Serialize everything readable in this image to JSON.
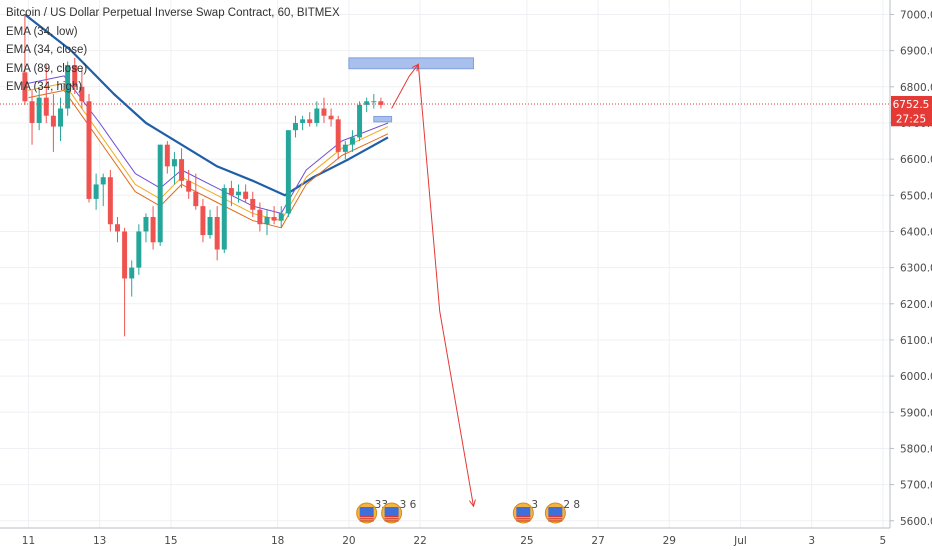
{
  "chart_data": {
    "type": "candlestick",
    "title": "Bitcoin / US Dollar Perpetual Inverse Swap Contract, 60, BITMEX",
    "indicators": [
      "EMA (34, low)",
      "EMA (34, close)",
      "EMA (89, close)",
      "EMA (34, high)"
    ],
    "y_ticks": [
      "7000.0",
      "6900.0",
      "6800.0",
      "6700.0",
      "6600.0",
      "6500.0",
      "6400.0",
      "6300.0",
      "6200.0",
      "6100.0",
      "6000.0",
      "5900.0",
      "5800.0",
      "5700.0",
      "5600.0"
    ],
    "y_tick_values": [
      7000,
      6900,
      6800,
      6700,
      6600,
      6500,
      6400,
      6300,
      6200,
      6100,
      6000,
      5900,
      5800,
      5700,
      5600
    ],
    "x_ticks": [
      "11",
      "13",
      "15",
      "18",
      "20",
      "22",
      "25",
      "27",
      "29",
      "Jul",
      "3",
      "5"
    ],
    "x_tick_days": [
      11,
      13,
      15,
      18,
      20,
      22,
      25,
      27,
      29,
      31,
      33,
      35
    ],
    "ylim": [
      5580,
      7040
    ],
    "xlim": [
      10.2,
      35.2
    ],
    "current_price": "6752.5",
    "current_price_value": 6752.5,
    "countdown": "27:25",
    "countdown_value": 6713,
    "candles": [
      [
        10.9,
        6840,
        7000,
        6750,
        6760
      ],
      [
        11.1,
        6760,
        6790,
        6640,
        6700
      ],
      [
        11.3,
        6700,
        6800,
        6680,
        6770
      ],
      [
        11.5,
        6770,
        6860,
        6700,
        6720
      ],
      [
        11.7,
        6720,
        6780,
        6620,
        6690
      ],
      [
        11.9,
        6690,
        6770,
        6650,
        6740
      ],
      [
        12.1,
        6740,
        6870,
        6720,
        6860
      ],
      [
        12.3,
        6860,
        6880,
        6780,
        6800
      ],
      [
        12.5,
        6800,
        6850,
        6740,
        6760
      ],
      [
        12.7,
        6760,
        6780,
        6480,
        6490
      ],
      [
        12.9,
        6490,
        6560,
        6460,
        6530
      ],
      [
        13.1,
        6530,
        6560,
        6470,
        6550
      ],
      [
        13.3,
        6550,
        6570,
        6400,
        6420
      ],
      [
        13.5,
        6420,
        6440,
        6370,
        6400
      ],
      [
        13.7,
        6400,
        6410,
        6110,
        6270
      ],
      [
        13.9,
        6270,
        6320,
        6220,
        6300
      ],
      [
        14.1,
        6300,
        6420,
        6280,
        6400
      ],
      [
        14.3,
        6400,
        6450,
        6370,
        6440
      ],
      [
        14.5,
        6440,
        6470,
        6350,
        6370
      ],
      [
        14.7,
        6370,
        6640,
        6360,
        6640
      ],
      [
        14.9,
        6640,
        6650,
        6560,
        6580
      ],
      [
        15.1,
        6580,
        6620,
        6530,
        6600
      ],
      [
        15.3,
        6600,
        6630,
        6520,
        6540
      ],
      [
        15.5,
        6540,
        6570,
        6490,
        6510
      ],
      [
        15.7,
        6510,
        6560,
        6460,
        6470
      ],
      [
        15.9,
        6470,
        6490,
        6370,
        6390
      ],
      [
        16.1,
        6390,
        6460,
        6380,
        6440
      ],
      [
        16.3,
        6440,
        6470,
        6320,
        6350
      ],
      [
        16.5,
        6350,
        6530,
        6340,
        6520
      ],
      [
        16.7,
        6520,
        6540,
        6470,
        6500
      ],
      [
        16.9,
        6500,
        6530,
        6480,
        6510
      ],
      [
        17.1,
        6510,
        6530,
        6480,
        6490
      ],
      [
        17.3,
        6490,
        6510,
        6440,
        6460
      ],
      [
        17.5,
        6460,
        6480,
        6400,
        6420
      ],
      [
        17.7,
        6420,
        6460,
        6390,
        6440
      ],
      [
        17.9,
        6440,
        6470,
        6420,
        6430
      ],
      [
        18.1,
        6430,
        6470,
        6410,
        6450
      ],
      [
        18.3,
        6450,
        6680,
        6440,
        6680
      ],
      [
        18.5,
        6680,
        6720,
        6660,
        6700
      ],
      [
        18.7,
        6700,
        6720,
        6680,
        6710
      ],
      [
        18.9,
        6710,
        6730,
        6690,
        6700
      ],
      [
        19.1,
        6700,
        6760,
        6690,
        6740
      ],
      [
        19.3,
        6740,
        6770,
        6700,
        6720
      ],
      [
        19.5,
        6720,
        6740,
        6690,
        6710
      ],
      [
        19.7,
        6710,
        6720,
        6600,
        6620
      ],
      [
        19.9,
        6620,
        6650,
        6600,
        6640
      ],
      [
        20.1,
        6640,
        6680,
        6620,
        6660
      ],
      [
        20.3,
        6660,
        6760,
        6650,
        6750
      ],
      [
        20.5,
        6750,
        6770,
        6730,
        6760
      ],
      [
        20.7,
        6760,
        6780,
        6740,
        6760
      ],
      [
        20.9,
        6760,
        6770,
        6740,
        6750
      ]
    ],
    "ema_series": [
      {
        "color": "#1f5ea8",
        "width": 2.2,
        "points": [
          [
            10.9,
            7000
          ],
          [
            12.2,
            6900
          ],
          [
            13.4,
            6780
          ],
          [
            14.3,
            6700
          ],
          [
            15.3,
            6640
          ],
          [
            16.3,
            6580
          ],
          [
            17.3,
            6540
          ],
          [
            18.2,
            6500
          ],
          [
            19.0,
            6550
          ],
          [
            20.0,
            6600
          ],
          [
            21.1,
            6660
          ]
        ]
      },
      {
        "color": "#6e4fd6",
        "width": 1,
        "points": [
          [
            11.0,
            6810
          ],
          [
            12.0,
            6830
          ],
          [
            13.0,
            6700
          ],
          [
            14.0,
            6560
          ],
          [
            14.7,
            6520
          ],
          [
            15.3,
            6570
          ],
          [
            16.3,
            6520
          ],
          [
            17.3,
            6470
          ],
          [
            18.1,
            6450
          ],
          [
            18.8,
            6570
          ],
          [
            19.8,
            6650
          ],
          [
            21.1,
            6700
          ]
        ]
      },
      {
        "color": "#f2a91c",
        "width": 1,
        "points": [
          [
            11.0,
            6790
          ],
          [
            12.0,
            6810
          ],
          [
            13.0,
            6670
          ],
          [
            14.0,
            6530
          ],
          [
            14.7,
            6490
          ],
          [
            15.3,
            6550
          ],
          [
            16.3,
            6500
          ],
          [
            17.3,
            6450
          ],
          [
            18.1,
            6430
          ],
          [
            18.8,
            6550
          ],
          [
            19.8,
            6630
          ],
          [
            21.1,
            6690
          ]
        ]
      },
      {
        "color": "#e06b1c",
        "width": 1,
        "points": [
          [
            11.0,
            6770
          ],
          [
            12.0,
            6790
          ],
          [
            13.0,
            6650
          ],
          [
            14.0,
            6510
          ],
          [
            14.7,
            6470
          ],
          [
            15.3,
            6530
          ],
          [
            16.3,
            6480
          ],
          [
            17.3,
            6430
          ],
          [
            18.1,
            6410
          ],
          [
            18.8,
            6530
          ],
          [
            19.8,
            6610
          ],
          [
            21.1,
            6670
          ]
        ]
      }
    ],
    "annotations": {
      "zones": [
        {
          "x1": 20.0,
          "x2": 23.5,
          "y1": 6880,
          "y2": 6850
        },
        {
          "x1": 20.7,
          "x2": 21.2,
          "y1": 6718,
          "y2": 6703
        }
      ],
      "forecast_path": [
        [
          21.2,
          6740
        ],
        [
          21.7,
          6830
        ],
        [
          21.95,
          6862
        ],
        [
          22.55,
          6180
        ],
        [
          23.5,
          5640
        ]
      ]
    },
    "events": [
      {
        "day": 20.5,
        "label": "33"
      },
      {
        "day": 21.2,
        "label": "3 6"
      },
      {
        "day": 24.9,
        "label": "3"
      },
      {
        "day": 25.8,
        "label": "2 8"
      }
    ],
    "colors": {
      "up": "#26a69a",
      "down": "#ef5350",
      "price_line": "#e53935",
      "zone": "#a9c0ec",
      "forecast": "#e53935"
    },
    "grid": true
  }
}
